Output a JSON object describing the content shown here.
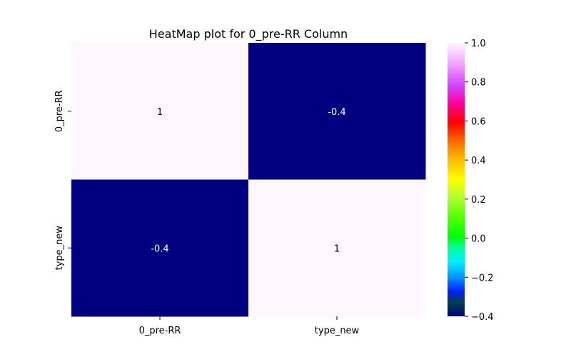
{
  "chart_data": {
    "type": "heatmap",
    "title": "HeatMap plot for 0_pre-RR Column",
    "x_categories": [
      "0_pre-RR",
      "type_new"
    ],
    "y_categories": [
      "0_pre-RR",
      "type_new"
    ],
    "values": [
      [
        1,
        -0.4
      ],
      [
        -0.4,
        1
      ]
    ],
    "cell_labels": [
      [
        "1",
        "-0.4"
      ],
      [
        "-0.4",
        "1"
      ]
    ],
    "colorbar": {
      "min": -0.4,
      "max": 1.0,
      "ticks": [
        -0.4,
        -0.2,
        0.0,
        0.2,
        0.4,
        0.6,
        0.8,
        1.0
      ],
      "tick_labels": [
        "−0.4",
        "−0.2",
        "0.0",
        "0.2",
        "0.4",
        "0.6",
        "0.8",
        "1.0"
      ]
    },
    "colormap": "gist_ncar",
    "colors": {
      "low": "#000080",
      "high": "#fef8fe"
    },
    "legend": "colorbar-right",
    "grid": false
  }
}
